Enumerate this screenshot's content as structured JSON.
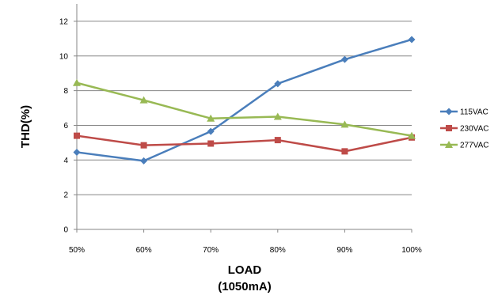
{
  "chart_data": {
    "type": "line",
    "categories": [
      "50%",
      "60%",
      "70%",
      "80%",
      "90%",
      "100%"
    ],
    "series": [
      {
        "name": "115VAC",
        "values": [
          4.45,
          3.95,
          5.65,
          8.4,
          9.8,
          10.95
        ],
        "color": "#4a7ebb",
        "marker": "diamond"
      },
      {
        "name": "230VAC",
        "values": [
          5.4,
          4.85,
          4.95,
          5.15,
          4.5,
          5.3
        ],
        "color": "#be4b48",
        "marker": "square"
      },
      {
        "name": "277VAC",
        "values": [
          8.45,
          7.45,
          6.4,
          6.5,
          6.05,
          5.4
        ],
        "color": "#98b954",
        "marker": "triangle"
      }
    ],
    "y_ticks": [
      0,
      2,
      4,
      6,
      8,
      10,
      12
    ],
    "ylim": [
      0,
      13
    ],
    "xlabel_line1": "LOAD",
    "xlabel_line2": "(1050mA)",
    "ylabel": "THD(%)",
    "grid": "horizontal",
    "legend_position": "right"
  }
}
